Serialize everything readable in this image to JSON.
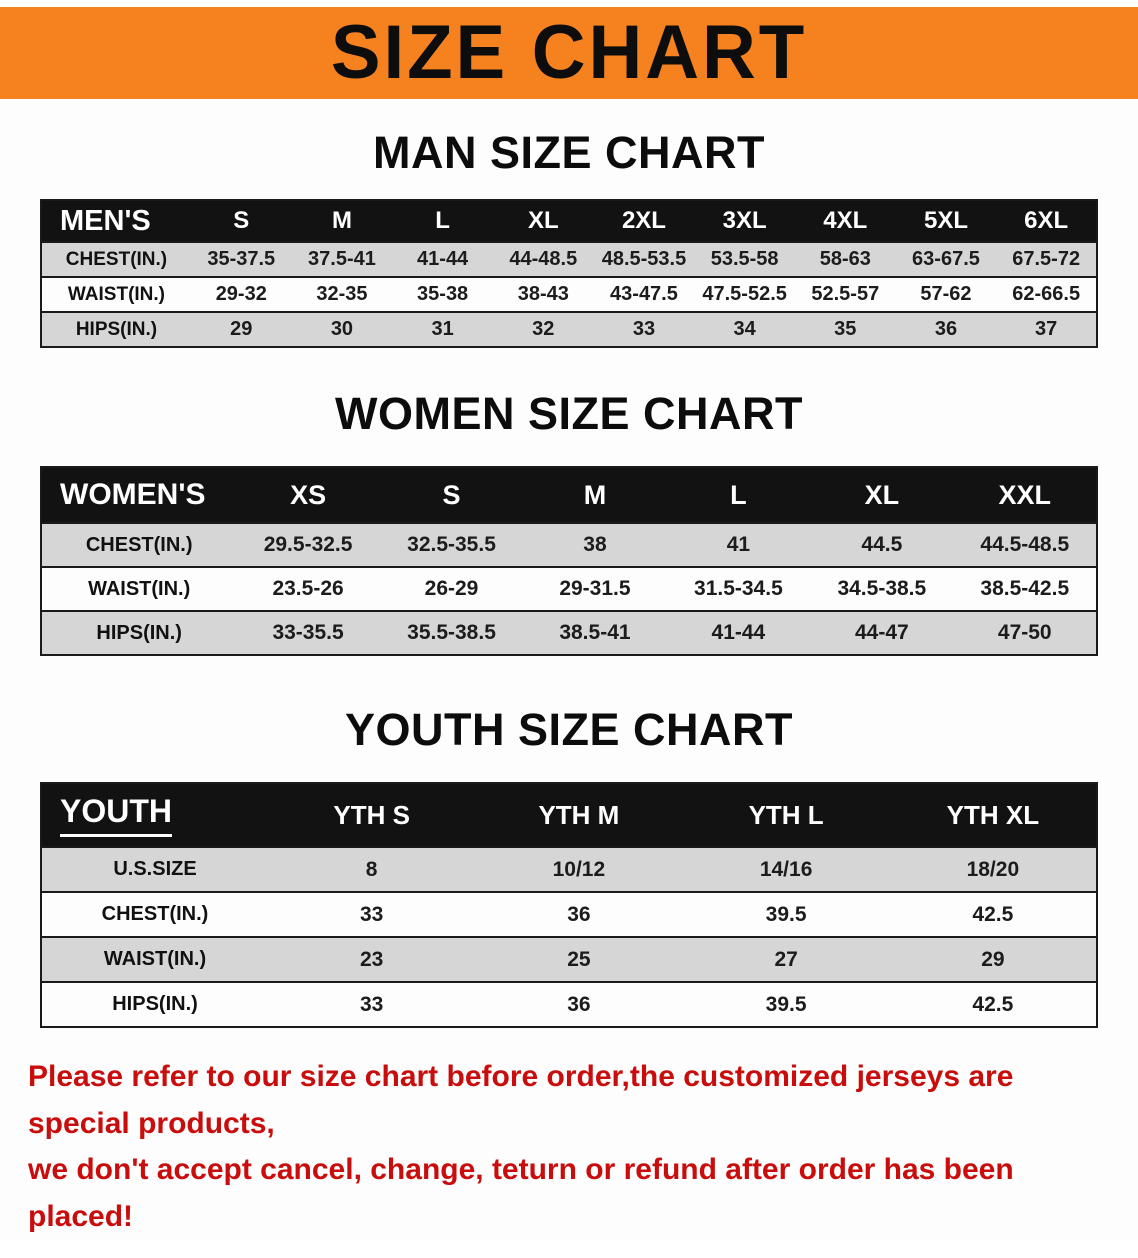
{
  "colors": {
    "banner_bg": "#f6821f",
    "table_header_bg": "#121212",
    "row_alt_bg": "#d6d6d6",
    "footer_text": "#c90d0d"
  },
  "banner": {
    "title": "SIZE CHART"
  },
  "men": {
    "heading": "MAN SIZE CHART",
    "header": [
      "MEN'S",
      "S",
      "M",
      "L",
      "XL",
      "2XL",
      "3XL",
      "4XL",
      "5XL",
      "6XL"
    ],
    "rows": [
      [
        "CHEST(IN.)",
        "35-37.5",
        "37.5-41",
        "41-44",
        "44-48.5",
        "48.5-53.5",
        "53.5-58",
        "58-63",
        "63-67.5",
        "67.5-72"
      ],
      [
        "WAIST(IN.)",
        "29-32",
        "32-35",
        "35-38",
        "38-43",
        "43-47.5",
        "47.5-52.5",
        "52.5-57",
        "57-62",
        "62-66.5"
      ],
      [
        "HIPS(IN.)",
        "29",
        "30",
        "31",
        "32",
        "33",
        "34",
        "35",
        "36",
        "37"
      ]
    ]
  },
  "women": {
    "heading": "WOMEN SIZE CHART",
    "header": [
      "WOMEN'S",
      "XS",
      "S",
      "M",
      "L",
      "XL",
      "XXL"
    ],
    "rows": [
      [
        "CHEST(IN.)",
        "29.5-32.5",
        "32.5-35.5",
        "38",
        "41",
        "44.5",
        "44.5-48.5"
      ],
      [
        "WAIST(IN.)",
        "23.5-26",
        "26-29",
        "29-31.5",
        "31.5-34.5",
        "34.5-38.5",
        "38.5-42.5"
      ],
      [
        "HIPS(IN.)",
        "33-35.5",
        "35.5-38.5",
        "38.5-41",
        "41-44",
        "44-47",
        "47-50"
      ]
    ]
  },
  "youth": {
    "heading": "YOUTH SIZE CHART",
    "header": [
      "YOUTH",
      "YTH S",
      "YTH M",
      "YTH L",
      "YTH XL"
    ],
    "rows": [
      [
        "U.S.SIZE",
        "8",
        "10/12",
        "14/16",
        "18/20"
      ],
      [
        "CHEST(IN.)",
        "33",
        "36",
        "39.5",
        "42.5"
      ],
      [
        "WAIST(IN.)",
        "23",
        "25",
        "27",
        "29"
      ],
      [
        "HIPS(IN.)",
        "33",
        "36",
        "39.5",
        "42.5"
      ]
    ]
  },
  "footer": {
    "line1": "Please refer to our size chart before order,the customized jerseys are special products,",
    "line2": "we don't accept cancel, change, teturn or refund after order has been placed!"
  }
}
